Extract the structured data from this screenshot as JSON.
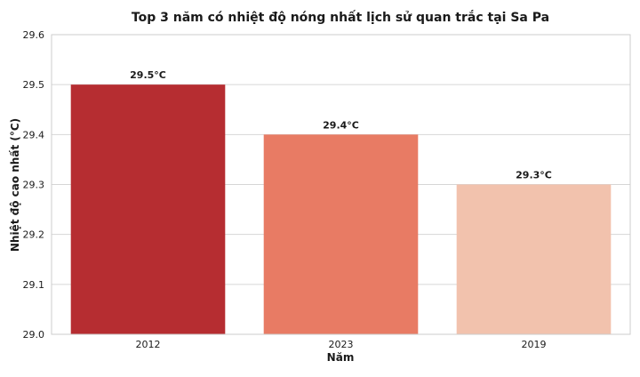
{
  "chart_data": {
    "type": "bar",
    "title": "Top 3 năm có nhiệt độ nóng nhất lịch sử quan trắc tại Sa Pa",
    "xlabel": "Năm",
    "ylabel": "Nhiệt độ cao nhất (°C)",
    "categories": [
      "2012",
      "2023",
      "2019"
    ],
    "values": [
      29.5,
      29.4,
      29.3
    ],
    "data_labels": [
      "29.5°C",
      "29.4°C",
      "29.3°C"
    ],
    "colors": [
      "#b62d31",
      "#e87b64",
      "#f2c2ad"
    ],
    "ylim": [
      29.0,
      29.6
    ],
    "yticks": [
      "29.0",
      "29.1",
      "29.2",
      "29.3",
      "29.4",
      "29.5",
      "29.6"
    ],
    "grid": true
  }
}
